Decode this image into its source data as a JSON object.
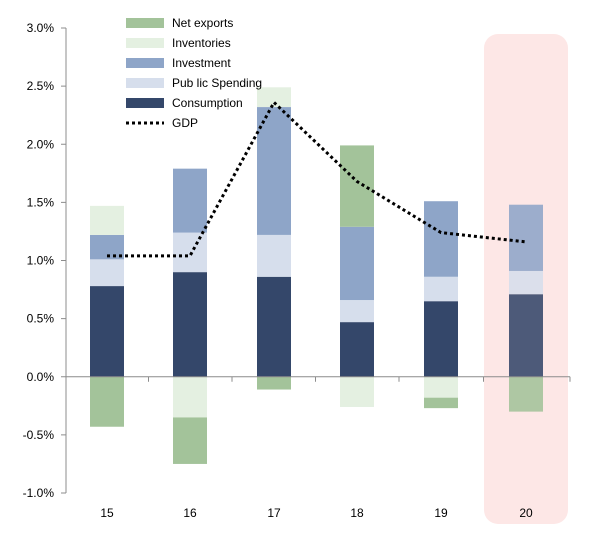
{
  "chart_data": {
    "type": "bar",
    "stacked": true,
    "categories": [
      "15",
      "16",
      "17",
      "18",
      "19",
      "20"
    ],
    "ylim": [
      -1.0,
      3.0
    ],
    "yticks": [
      -1.0,
      -0.5,
      0.0,
      0.5,
      1.0,
      1.5,
      2.0,
      2.5,
      3.0
    ],
    "ytick_labels": [
      "-1.0%",
      "-0.5%",
      "0.0%",
      "0.5%",
      "1.0%",
      "1.5%",
      "2.0%",
      "2.5%",
      "3.0%"
    ],
    "grid": false,
    "legend_position": "top-left",
    "highlight_category": "20",
    "highlight_color": "#fde7e6",
    "series": [
      {
        "name": "Consumption",
        "color": "#34476a",
        "values": [
          0.78,
          0.9,
          0.86,
          0.47,
          0.65,
          0.71
        ]
      },
      {
        "name": "Pub lic Spending",
        "color": "#d6deec",
        "values": [
          0.23,
          0.34,
          0.36,
          0.19,
          0.21,
          0.2
        ]
      },
      {
        "name": "Investment",
        "color": "#8ea5c8",
        "values": [
          0.21,
          0.55,
          1.1,
          0.63,
          0.65,
          0.57
        ]
      },
      {
        "name": "Inventories",
        "color": "#e4f0e1",
        "values": [
          0.25,
          -0.35,
          0.17,
          -0.26,
          -0.18,
          0.0
        ]
      },
      {
        "name": "Net exports",
        "color": "#a3c39a",
        "values": [
          -0.43,
          -0.4,
          -0.11,
          0.7,
          -0.09,
          -0.3
        ]
      }
    ],
    "line": {
      "name": "GDP",
      "color": "#000000",
      "style": "dotted",
      "values": [
        1.04,
        1.04,
        2.36,
        1.68,
        1.24,
        1.16
      ]
    },
    "legend_order": [
      "Net exports",
      "Inventories",
      "Investment",
      "Pub lic Spending",
      "Consumption",
      "GDP"
    ]
  }
}
